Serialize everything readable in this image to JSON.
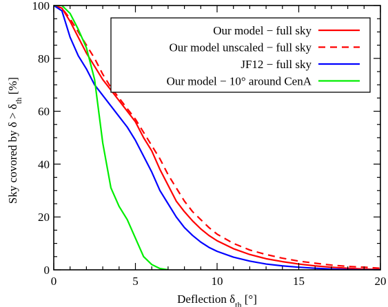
{
  "chart_data": {
    "type": "line",
    "xlabel": "Deflection δ",
    "xlabel_sub": "th",
    "xlabel_unit": " [°]",
    "ylabel_parts": [
      "Sky covored by δ > δ",
      "th",
      " [%]"
    ],
    "xlim": [
      0,
      20
    ],
    "ylim": [
      0,
      100
    ],
    "xticks": [
      0,
      5,
      10,
      15,
      20
    ],
    "yticks": [
      0,
      20,
      40,
      60,
      80,
      100
    ],
    "grid": false,
    "legend_position": "top-right",
    "series": [
      {
        "name": "Our model − full sky",
        "color": "#ff0000",
        "dash": "solid",
        "x": [
          0,
          0.5,
          1,
          1.5,
          2,
          2.5,
          3,
          3.5,
          4,
          4.5,
          5,
          5.5,
          6,
          6.5,
          7,
          7.5,
          8,
          8.5,
          9,
          9.5,
          10,
          11,
          12,
          13,
          14,
          15,
          16,
          17,
          18,
          19,
          20
        ],
        "y": [
          100,
          99,
          94,
          88,
          82,
          77,
          72,
          68,
          64,
          60,
          56,
          50,
          45,
          38,
          32,
          26,
          22,
          18.5,
          15.5,
          13,
          11,
          8,
          5.8,
          4.2,
          3.1,
          2.2,
          1.5,
          1.0,
          0.6,
          0.3,
          0.1
        ]
      },
      {
        "name": "Our model unscaled − full sky",
        "color": "#ff0000",
        "dash": "dashed",
        "x": [
          0,
          0.5,
          1,
          1.5,
          2,
          2.5,
          3,
          3.5,
          4,
          4.5,
          5,
          5.5,
          6,
          6.5,
          7,
          7.5,
          8,
          8.5,
          9,
          9.5,
          10,
          11,
          12,
          13,
          14,
          15,
          16,
          17,
          18,
          19,
          20
        ],
        "y": [
          100,
          99,
          95,
          90,
          85,
          80,
          74,
          69,
          65,
          61,
          57,
          52,
          47,
          42,
          36,
          31,
          26,
          22,
          19,
          16,
          13.5,
          10,
          7.5,
          5.8,
          4.4,
          3.3,
          2.5,
          1.8,
          1.3,
          1.0,
          0.6
        ]
      },
      {
        "name": "JF12 − full sky",
        "color": "#0000ff",
        "dash": "solid",
        "x": [
          0,
          0.5,
          1,
          1.5,
          2,
          2.5,
          3,
          3.5,
          4,
          4.5,
          5,
          5.5,
          6,
          6.5,
          7,
          7.5,
          8,
          8.5,
          9,
          9.5,
          10,
          11,
          12,
          13,
          14,
          15,
          16,
          17,
          18,
          19,
          20
        ],
        "y": [
          100,
          98,
          88,
          81,
          76,
          70,
          66,
          62,
          58,
          54,
          49,
          43,
          37,
          30,
          25,
          20,
          16,
          13,
          10.5,
          8.5,
          7,
          4.8,
          3.3,
          2.2,
          1.5,
          1.0,
          0.6,
          0.3,
          0.1,
          0,
          0
        ]
      },
      {
        "name": "Our model − 10° around CenA",
        "color": "#00ee00",
        "dash": "solid",
        "x": [
          0,
          0.5,
          1,
          1.5,
          2,
          2.5,
          3,
          3.5,
          4,
          4.5,
          5,
          5.5,
          6,
          6.5,
          7
        ],
        "y": [
          100,
          100,
          97,
          91,
          84,
          72,
          48,
          31,
          24,
          19,
          12,
          5,
          2,
          0.5,
          0
        ]
      }
    ]
  }
}
